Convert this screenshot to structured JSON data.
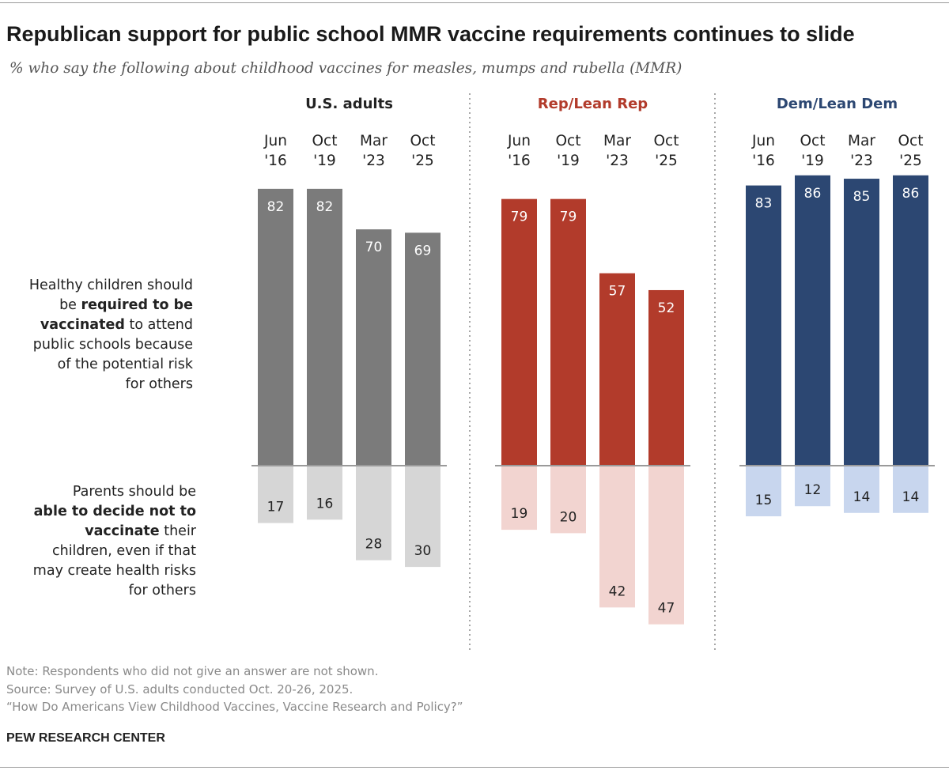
{
  "title": "Republican support for public school MMR vaccine requirements continues to slide",
  "subtitle": "% who say the following about childhood vaccines for measles, mumps and rubella (MMR)",
  "row_labels": {
    "required": {
      "l1": "Healthy children should",
      "l2_pre": "be ",
      "l2_bold": "required to be",
      "l3_bold": "vaccinated",
      "l3_post": " to attend",
      "l4": "public schools because",
      "l5": "of the potential risk",
      "l6": "for others"
    },
    "decide": {
      "l1": "Parents should be",
      "l2_bold": "able to decide not to",
      "l3_bold": "vaccinate",
      "l3_post": " their",
      "l4": "children, even if that",
      "l5": "may create health risks",
      "l6": "for others"
    }
  },
  "chart_data": {
    "type": "bar",
    "categories": [
      {
        "line1": "Jun",
        "line2": "'16"
      },
      {
        "line1": "Oct",
        "line2": "'19"
      },
      {
        "line1": "Mar",
        "line2": "'23"
      },
      {
        "line1": "Oct",
        "line2": "'25"
      }
    ],
    "groups": [
      {
        "name": "U.S. adults",
        "label_color": "#222222",
        "color_up": "#7b7b7b",
        "color_down": "#d6d6d6",
        "required": [
          82,
          82,
          70,
          69
        ],
        "decide": [
          17,
          16,
          28,
          30
        ]
      },
      {
        "name": "Rep/Lean Rep",
        "label_color": "#b23b2b",
        "color_up": "#b23b2b",
        "color_down": "#f2d4d0",
        "required": [
          79,
          79,
          57,
          52
        ],
        "decide": [
          19,
          20,
          42,
          47
        ]
      },
      {
        "name": "Dem/Lean Dem",
        "label_color": "#2c4772",
        "color_up": "#2c4772",
        "color_down": "#c8d6ee",
        "required": [
          83,
          86,
          85,
          86
        ],
        "decide": [
          15,
          12,
          14,
          14
        ]
      }
    ]
  },
  "notes": {
    "note": "Note: Respondents who did not give an answer are not shown.",
    "source": "Source: Survey of U.S. adults conducted Oct. 20-26, 2025.",
    "report": "“How Do Americans View Childhood Vaccines, Vaccine Research and Policy?”"
  },
  "brand": "PEW RESEARCH CENTER"
}
